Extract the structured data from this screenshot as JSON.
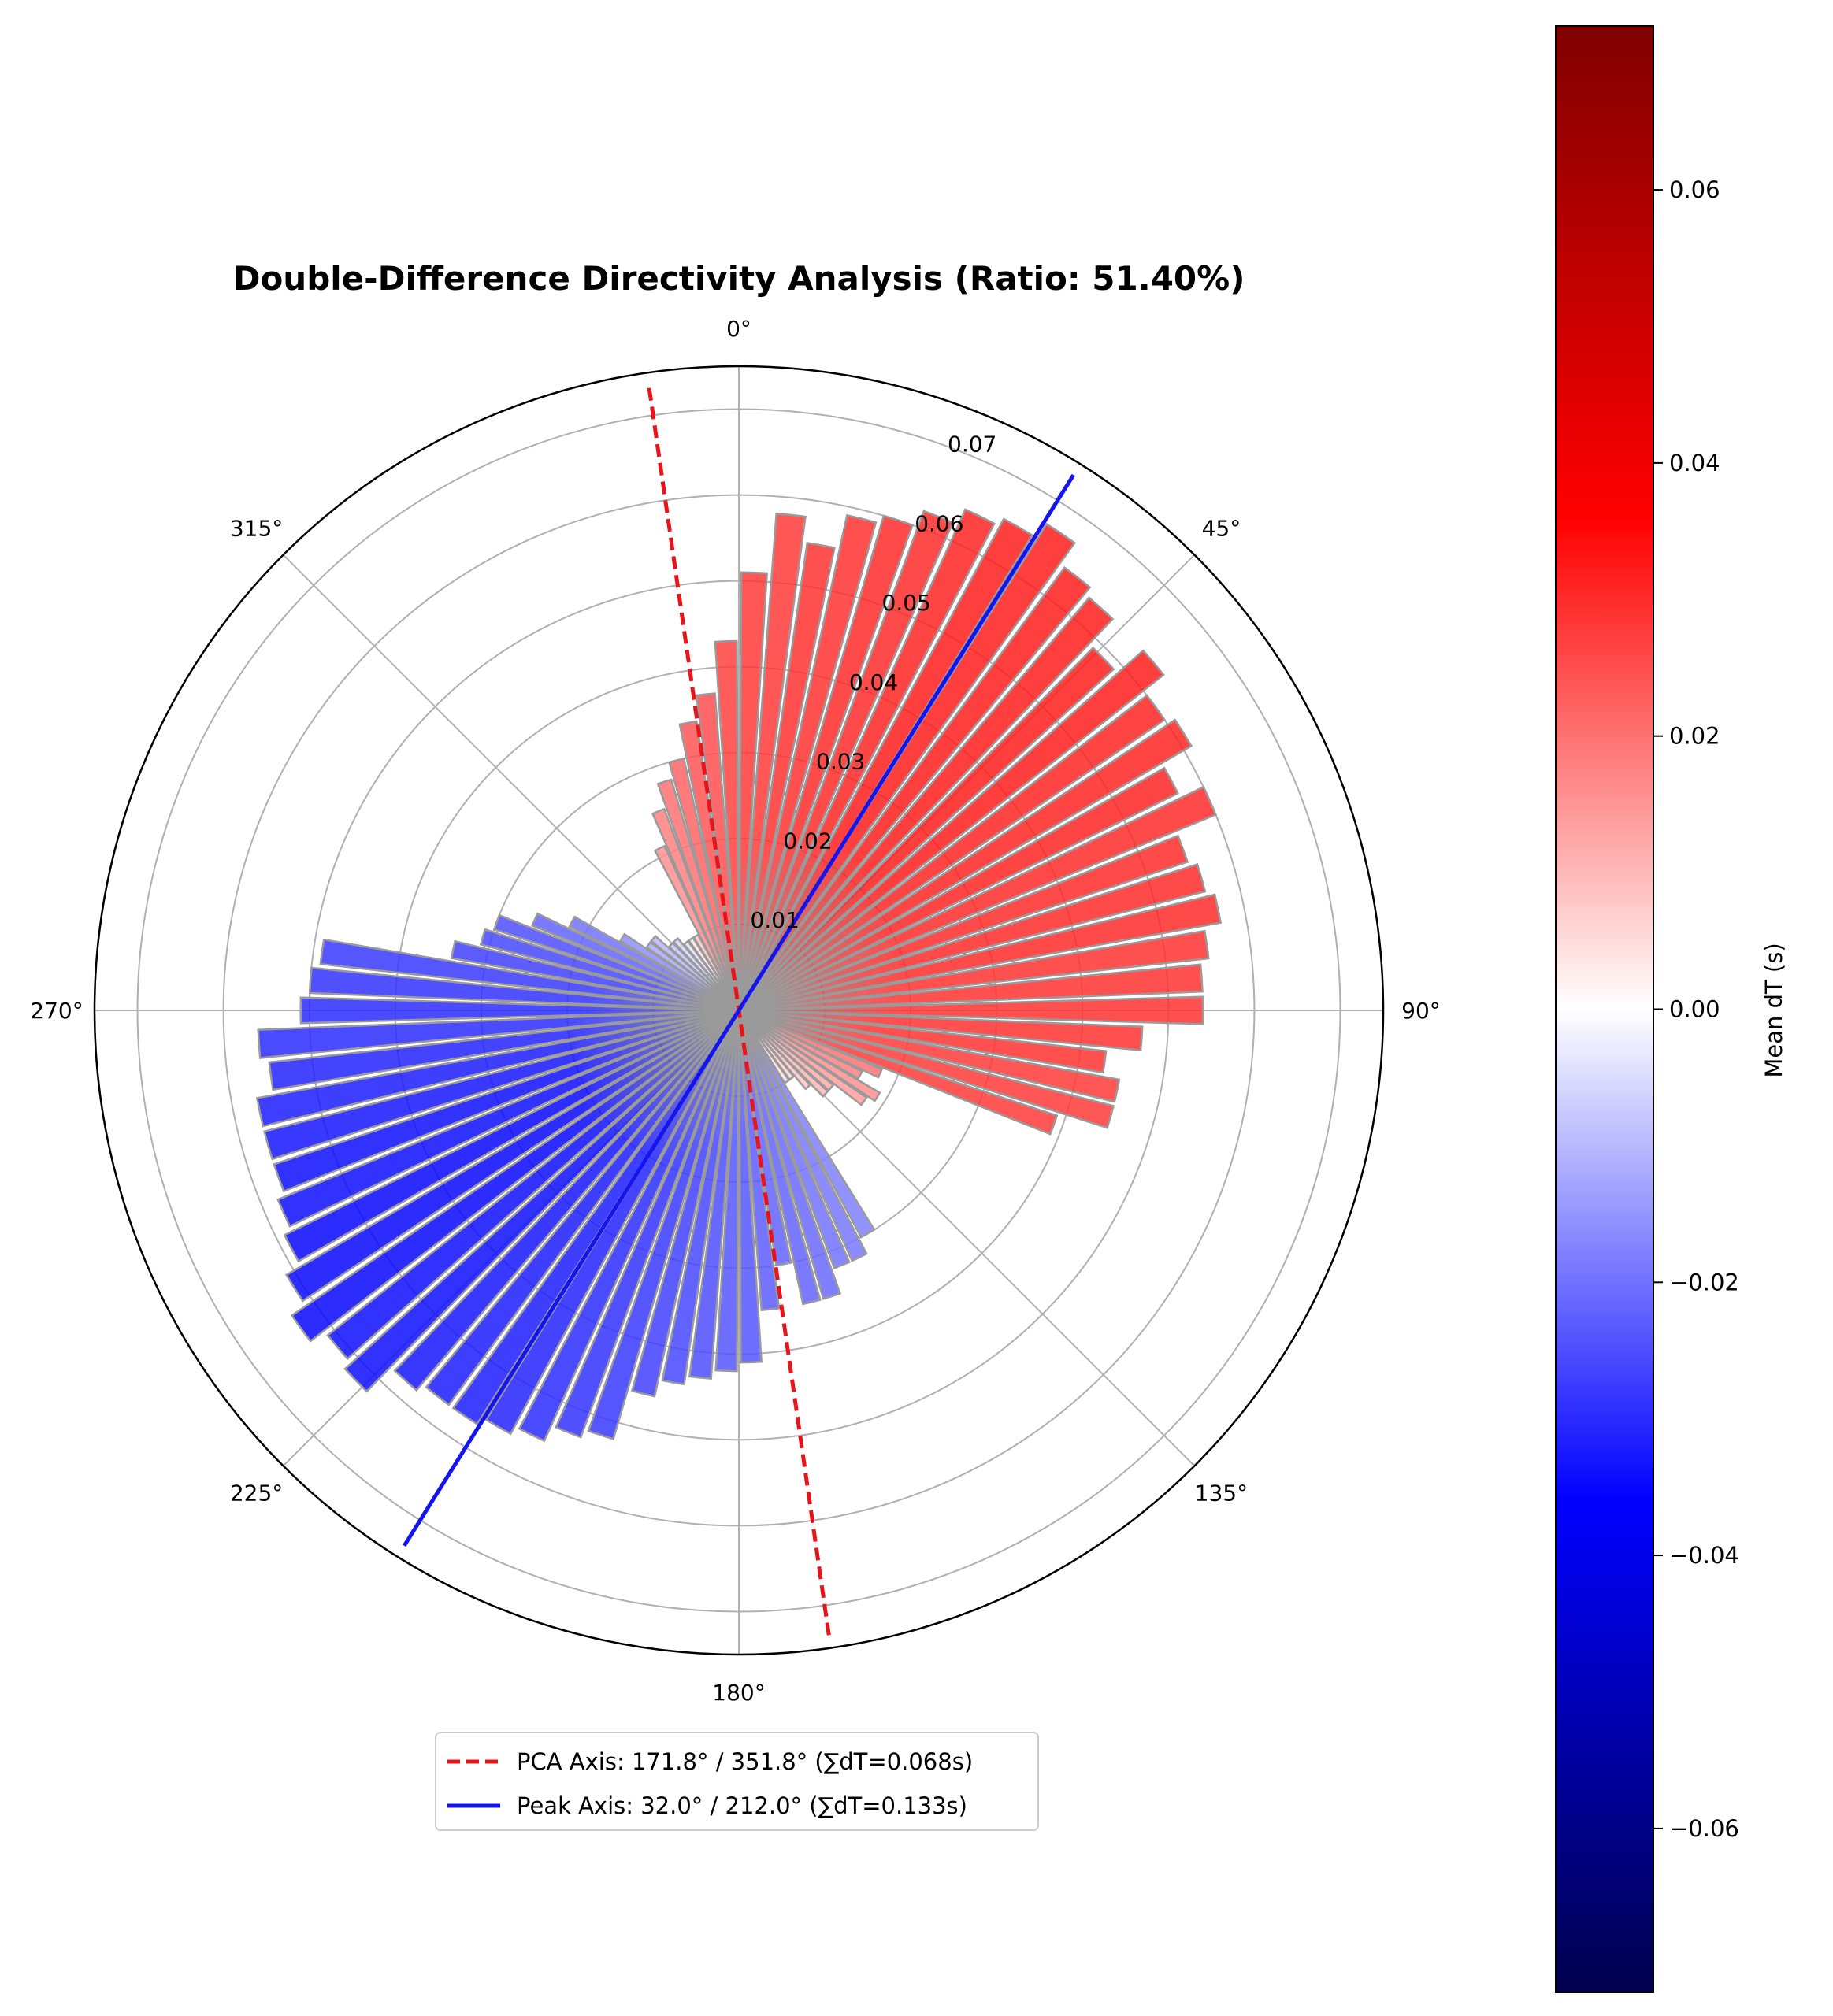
{
  "chart_data": {
    "type": "polar-bar",
    "title": "Double-Difference Directivity Analysis (Ratio: 51.40%)",
    "theta_direction": "clockwise",
    "theta_zero": "north",
    "bin_width_deg": 4,
    "theta_ticks": [
      "0°",
      "45°",
      "90°",
      "135°",
      "180°",
      "225°",
      "270°",
      "315°"
    ],
    "r_ticks": [
      "0.01",
      "0.02",
      "0.03",
      "0.04",
      "0.05",
      "0.06",
      "0.07"
    ],
    "r_max": 0.075,
    "r_tick_angle_deg": 22.5,
    "grid": true,
    "bins": {
      "theta_deg": [
        2,
        6,
        10,
        14,
        18,
        22,
        26,
        30,
        34,
        38,
        42,
        46,
        50,
        54,
        58,
        62,
        66,
        70,
        74,
        78,
        82,
        86,
        90,
        94,
        98,
        102,
        106,
        110,
        114,
        118,
        122,
        126,
        130,
        134,
        138,
        142,
        146,
        150,
        154,
        158,
        162,
        166,
        170,
        174,
        178,
        182,
        186,
        190,
        194,
        198,
        202,
        206,
        210,
        214,
        218,
        222,
        226,
        230,
        234,
        238,
        242,
        246,
        250,
        254,
        258,
        262,
        266,
        270,
        274,
        278,
        282,
        286,
        290,
        294,
        298,
        302,
        306,
        310,
        314,
        318,
        322,
        326,
        330,
        334,
        338,
        342,
        346,
        350,
        354,
        358
      ],
      "r": [
        0.051,
        0.058,
        0.055,
        0.059,
        0.06,
        0.062,
        0.064,
        0.065,
        0.067,
        0.064,
        0.063,
        0.059,
        0.063,
        0.06,
        0.061,
        0.057,
        0.06,
        0.055,
        0.056,
        0.057,
        0.055,
        0.054,
        0.054,
        0.047,
        0.043,
        0.045,
        0.045,
        0.039,
        0.018,
        0.016,
        0.019,
        0.018,
        0.014,
        0.014,
        0.012,
        0.01,
        0.01,
        0.03,
        0.032,
        0.032,
        0.035,
        0.035,
        0.03,
        0.035,
        0.041,
        0.042,
        0.043,
        0.044,
        0.046,
        0.052,
        0.053,
        0.055,
        0.056,
        0.057,
        0.057,
        0.058,
        0.062,
        0.061,
        0.063,
        0.061,
        0.059,
        0.058,
        0.057,
        0.057,
        0.057,
        0.055,
        0.056,
        0.051,
        0.05,
        0.049,
        0.034,
        0.031,
        0.03,
        0.026,
        0.022,
        0.016,
        0.013,
        0.013,
        0.011,
        0.011,
        0.01,
        0.01,
        0.01,
        0.021,
        0.025,
        0.028,
        0.03,
        0.034,
        0.037,
        0.043
      ],
      "mean_dT": [
        0.028,
        0.028,
        0.029,
        0.029,
        0.03,
        0.03,
        0.031,
        0.032,
        0.032,
        0.032,
        0.032,
        0.032,
        0.032,
        0.031,
        0.031,
        0.031,
        0.03,
        0.03,
        0.03,
        0.03,
        0.029,
        0.029,
        0.029,
        0.029,
        0.029,
        0.028,
        0.028,
        0.028,
        0.02,
        0.018,
        0.016,
        0.014,
        0.012,
        0.01,
        0.008,
        0.006,
        0.004,
        -0.018,
        -0.019,
        -0.02,
        -0.021,
        -0.022,
        -0.022,
        -0.023,
        -0.024,
        -0.024,
        -0.025,
        -0.026,
        -0.027,
        -0.028,
        -0.029,
        -0.03,
        -0.031,
        -0.032,
        -0.032,
        -0.033,
        -0.034,
        -0.034,
        -0.035,
        -0.035,
        -0.035,
        -0.034,
        -0.034,
        -0.033,
        -0.032,
        -0.031,
        -0.03,
        -0.03,
        -0.029,
        -0.028,
        -0.027,
        -0.026,
        -0.025,
        -0.022,
        -0.02,
        -0.016,
        -0.012,
        -0.01,
        -0.008,
        -0.006,
        -0.004,
        0.004,
        0.008,
        0.016,
        0.018,
        0.02,
        0.022,
        0.024,
        0.025,
        0.027
      ]
    },
    "axes": [
      {
        "label": "PCA Axis: 171.8° / 351.8° (∑dT=0.068s)",
        "angle_deg": 171.8,
        "color": "#e8141a",
        "style": "dashed"
      },
      {
        "label": "Peak Axis: 32.0° / 212.0° (∑dT=0.133s)",
        "angle_deg": 32.0,
        "color": "#1414ee",
        "style": "solid"
      }
    ],
    "legend_position": "lower-center",
    "colorbar": {
      "label": "Mean dT (s)",
      "cmap": "seismic",
      "range": [
        -0.072,
        0.072
      ],
      "ticks": [
        "0.06",
        "0.04",
        "0.02",
        "0.00",
        "−0.02",
        "−0.04",
        "−0.06"
      ],
      "tick_values": [
        0.06,
        0.04,
        0.02,
        0.0,
        -0.02,
        -0.04,
        -0.06
      ]
    }
  }
}
